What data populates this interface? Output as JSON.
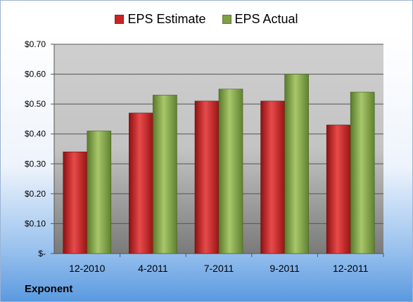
{
  "company": "Exponent",
  "legend": [
    {
      "name": "EPS Estimate",
      "color": "#cc2222"
    },
    {
      "name": "EPS Actual",
      "color": "#7fa044"
    }
  ],
  "chart_data": {
    "type": "bar",
    "categories": [
      "12-2010",
      "4-2011",
      "7-2011",
      "9-2011",
      "12-2011"
    ],
    "series": [
      {
        "name": "EPS Estimate",
        "values": [
          0.34,
          0.47,
          0.51,
          0.51,
          0.43
        ],
        "color": "#cc2222"
      },
      {
        "name": "EPS Actual",
        "values": [
          0.41,
          0.53,
          0.55,
          0.6,
          0.54
        ],
        "color": "#7fa044"
      }
    ],
    "ylim": [
      0,
      0.7
    ],
    "yticks": [
      {
        "value": 0,
        "label": "$-"
      },
      {
        "value": 0.1,
        "label": "$0.10"
      },
      {
        "value": 0.2,
        "label": "$0.20"
      },
      {
        "value": 0.3,
        "label": "$0.30"
      },
      {
        "value": 0.4,
        "label": "$0.40"
      },
      {
        "value": 0.5,
        "label": "$0.50"
      },
      {
        "value": 0.6,
        "label": "$0.60"
      },
      {
        "value": 0.7,
        "label": "$0.70"
      }
    ],
    "grid": true,
    "legend_position": "top"
  }
}
